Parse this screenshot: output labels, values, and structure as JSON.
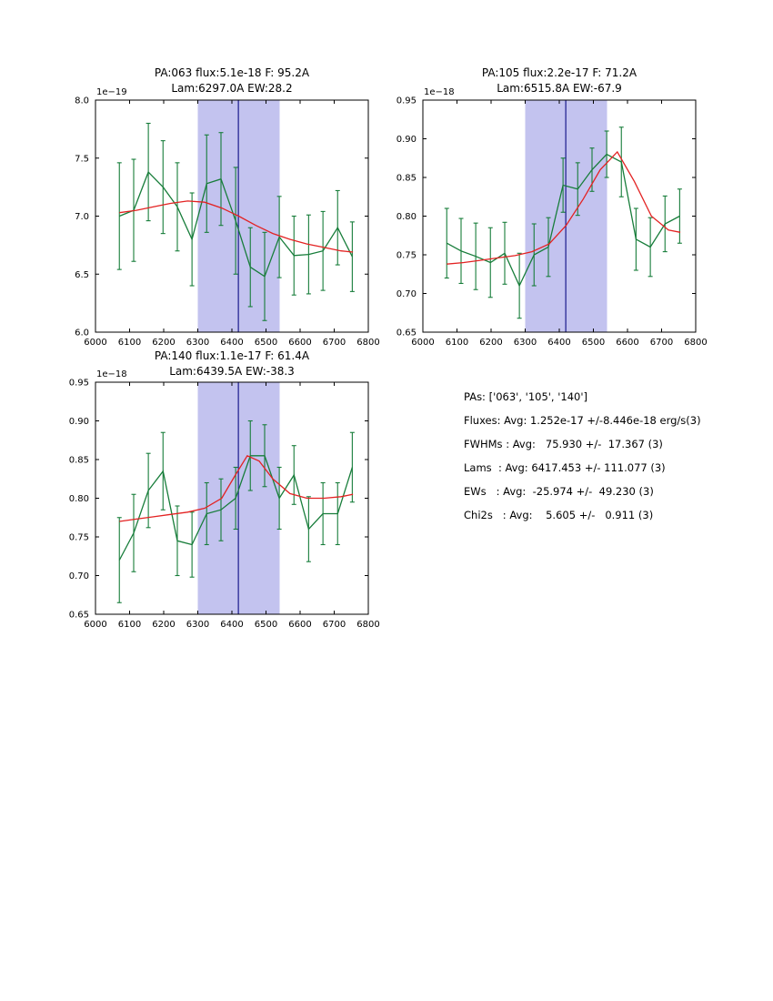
{
  "colors": {
    "data_line": "#177d3a",
    "fit_line": "#e32222",
    "band_fill": "#c3c3ef",
    "vline": "#1a1a8c",
    "axis": "#000000"
  },
  "stats_panel": {
    "lines": [
      "PAs: ['063', '105', '140']",
      "Fluxes: Avg: 1.252e-17 +/-8.446e-18 erg/s(3)",
      "FWHMs : Avg:   75.930 +/-  17.367 (3)",
      "Lams  : Avg: 6417.453 +/- 111.077 (3)",
      "EWs   : Avg:  -25.974 +/-  49.230 (3)",
      "Chi2s   : Avg:    5.605 +/-   0.911 (3)"
    ]
  },
  "chart_data": [
    {
      "type": "line",
      "title_line1": "PA:063 flux:5.1e-18 F: 95.2A",
      "title_line2": "Lam:6297.0A EW:28.2",
      "offset_label": "1e−19",
      "xlim": [
        6000,
        6800
      ],
      "ylim": [
        6.0,
        8.0
      ],
      "x_ticks": [
        6000,
        6100,
        6200,
        6300,
        6400,
        6500,
        6600,
        6700,
        6800
      ],
      "y_ticks": [
        6.0,
        6.5,
        7.0,
        7.5,
        8.0
      ],
      "y_tick_labels": [
        "6.0",
        "6.5",
        "7.0",
        "7.5",
        "8.0"
      ],
      "band": [
        6300,
        6540
      ],
      "vline": 6419,
      "series": [
        {
          "name": "data",
          "color_key": "data_line",
          "x": [
            6070,
            6112,
            6155,
            6198,
            6240,
            6283,
            6326,
            6368,
            6411,
            6454,
            6496,
            6539,
            6582,
            6625,
            6667,
            6710,
            6753
          ],
          "y": [
            7.0,
            7.05,
            7.38,
            7.25,
            7.08,
            6.8,
            7.28,
            7.32,
            6.96,
            6.56,
            6.48,
            6.82,
            6.66,
            6.67,
            6.7,
            6.9,
            6.65
          ],
          "yerr": [
            0.46,
            0.44,
            0.42,
            0.4,
            0.38,
            0.4,
            0.42,
            0.4,
            0.46,
            0.34,
            0.38,
            0.35,
            0.34,
            0.34,
            0.34,
            0.32,
            0.3
          ]
        },
        {
          "name": "fit",
          "color_key": "fit_line",
          "x": [
            6070,
            6120,
            6170,
            6220,
            6270,
            6320,
            6370,
            6420,
            6470,
            6520,
            6570,
            6620,
            6670,
            6720,
            6755
          ],
          "y": [
            7.03,
            7.05,
            7.08,
            7.11,
            7.13,
            7.12,
            7.07,
            7.0,
            6.92,
            6.85,
            6.8,
            6.76,
            6.73,
            6.7,
            6.69
          ]
        }
      ]
    },
    {
      "type": "line",
      "title_line1": "PA:105 flux:2.2e-17 F: 71.2A",
      "title_line2": "Lam:6515.8A EW:-67.9",
      "offset_label": "1e−18",
      "xlim": [
        6000,
        6800
      ],
      "ylim": [
        0.65,
        0.95
      ],
      "x_ticks": [
        6000,
        6100,
        6200,
        6300,
        6400,
        6500,
        6600,
        6700,
        6800
      ],
      "y_ticks": [
        0.65,
        0.7,
        0.75,
        0.8,
        0.85,
        0.9,
        0.95
      ],
      "y_tick_labels": [
        "0.65",
        "0.70",
        "0.75",
        "0.80",
        "0.85",
        "0.90",
        "0.95"
      ],
      "band": [
        6300,
        6540
      ],
      "vline": 6419,
      "series": [
        {
          "name": "data",
          "color_key": "data_line",
          "x": [
            6070,
            6112,
            6155,
            6198,
            6240,
            6283,
            6326,
            6368,
            6411,
            6454,
            6496,
            6539,
            6582,
            6625,
            6667,
            6710,
            6753
          ],
          "y": [
            0.765,
            0.755,
            0.748,
            0.74,
            0.752,
            0.71,
            0.75,
            0.76,
            0.84,
            0.835,
            0.86,
            0.88,
            0.87,
            0.77,
            0.76,
            0.79,
            0.8
          ],
          "yerr": [
            0.045,
            0.042,
            0.043,
            0.045,
            0.04,
            0.042,
            0.04,
            0.038,
            0.035,
            0.034,
            0.028,
            0.03,
            0.045,
            0.04,
            0.038,
            0.036,
            0.035
          ]
        },
        {
          "name": "fit",
          "color_key": "fit_line",
          "x": [
            6070,
            6120,
            6170,
            6220,
            6270,
            6320,
            6370,
            6420,
            6470,
            6520,
            6570,
            6620,
            6670,
            6720,
            6755
          ],
          "y": [
            0.738,
            0.74,
            0.743,
            0.746,
            0.749,
            0.754,
            0.764,
            0.788,
            0.822,
            0.86,
            0.883,
            0.845,
            0.8,
            0.782,
            0.779
          ]
        }
      ]
    },
    {
      "type": "line",
      "title_line1": "PA:140 flux:1.1e-17 F: 61.4A",
      "title_line2": "Lam:6439.5A EW:-38.3",
      "offset_label": "1e−18",
      "xlim": [
        6000,
        6800
      ],
      "ylim": [
        0.65,
        0.95
      ],
      "x_ticks": [
        6000,
        6100,
        6200,
        6300,
        6400,
        6500,
        6600,
        6700,
        6800
      ],
      "y_ticks": [
        0.65,
        0.7,
        0.75,
        0.8,
        0.85,
        0.9,
        0.95
      ],
      "y_tick_labels": [
        "0.65",
        "0.70",
        "0.75",
        "0.80",
        "0.85",
        "0.90",
        "0.95"
      ],
      "band": [
        6300,
        6540
      ],
      "vline": 6419,
      "series": [
        {
          "name": "data",
          "color_key": "data_line",
          "x": [
            6070,
            6112,
            6155,
            6198,
            6240,
            6283,
            6326,
            6368,
            6411,
            6454,
            6496,
            6539,
            6582,
            6625,
            6667,
            6710,
            6753
          ],
          "y": [
            0.72,
            0.755,
            0.81,
            0.835,
            0.745,
            0.74,
            0.78,
            0.785,
            0.8,
            0.855,
            0.855,
            0.8,
            0.83,
            0.76,
            0.78,
            0.78,
            0.84
          ],
          "yerr": [
            0.055,
            0.05,
            0.048,
            0.05,
            0.045,
            0.042,
            0.04,
            0.04,
            0.04,
            0.045,
            0.04,
            0.04,
            0.038,
            0.042,
            0.04,
            0.04,
            0.045
          ]
        },
        {
          "name": "fit",
          "color_key": "fit_line",
          "x": [
            6070,
            6120,
            6170,
            6220,
            6270,
            6320,
            6370,
            6410,
            6445,
            6480,
            6520,
            6570,
            6620,
            6670,
            6720,
            6755
          ],
          "y": [
            0.77,
            0.773,
            0.776,
            0.779,
            0.782,
            0.787,
            0.8,
            0.83,
            0.855,
            0.848,
            0.825,
            0.806,
            0.8,
            0.8,
            0.802,
            0.805
          ]
        }
      ]
    }
  ]
}
